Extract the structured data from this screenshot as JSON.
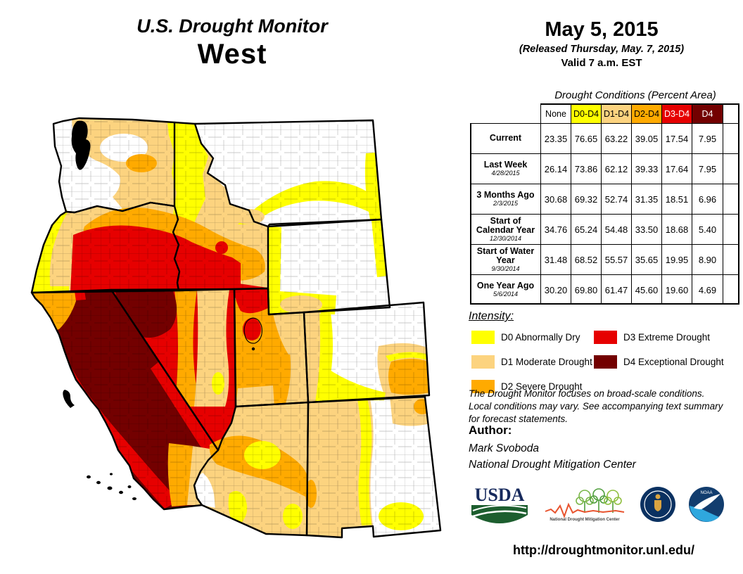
{
  "header": {
    "title": "U.S. Drought Monitor",
    "region": "West",
    "date": "May 5, 2015",
    "released": "(Released Thursday, May. 7, 2015)",
    "valid": "Valid 7 a.m. EST"
  },
  "table": {
    "title": "Drought Conditions (Percent Area)",
    "columns": [
      "None",
      "D0-D4",
      "D1-D4",
      "D2-D4",
      "D3-D4",
      "D4"
    ],
    "rows": [
      {
        "label": "Current",
        "sub": "",
        "values": [
          "23.35",
          "76.65",
          "63.22",
          "39.05",
          "17.54",
          "7.95"
        ]
      },
      {
        "label": "Last Week",
        "sub": "4/28/2015",
        "values": [
          "26.14",
          "73.86",
          "62.12",
          "39.33",
          "17.64",
          "7.95"
        ]
      },
      {
        "label": "3 Months Ago",
        "sub": "2/3/2015",
        "values": [
          "30.68",
          "69.32",
          "52.74",
          "31.35",
          "18.51",
          "6.96"
        ]
      },
      {
        "label": "Start of Calendar Year",
        "sub": "12/30/2014",
        "values": [
          "34.76",
          "65.24",
          "54.48",
          "33.50",
          "18.68",
          "5.40"
        ]
      },
      {
        "label": "Start of Water Year",
        "sub": "9/30/2014",
        "values": [
          "31.48",
          "68.52",
          "55.57",
          "35.65",
          "19.95",
          "8.90"
        ]
      },
      {
        "label": "One Year Ago",
        "sub": "5/6/2014",
        "values": [
          "30.20",
          "69.80",
          "61.47",
          "45.60",
          "19.60",
          "4.69"
        ]
      }
    ]
  },
  "legend": {
    "title": "Intensity:",
    "items": [
      {
        "code": "d0",
        "label": "D0 Abnormally Dry"
      },
      {
        "code": "d1",
        "label": "D1 Moderate Drought"
      },
      {
        "code": "d2",
        "label": "D2 Severe Drought"
      },
      {
        "code": "d3",
        "label": "D3 Extreme Drought"
      },
      {
        "code": "d4",
        "label": "D4 Exceptional Drought"
      }
    ]
  },
  "notes": {
    "line1": "The Drought Monitor focuses on broad-scale conditions.",
    "line2": "Local conditions may vary. See accompanying text summary",
    "line3": "for forecast statements.",
    "author_heading": "Author:",
    "author_name": "Mark Svoboda",
    "author_org": "National Drought Mitigation Center"
  },
  "footer": {
    "url": "http://droughtmonitor.unl.edu/",
    "usda_label": "USDA",
    "ndmc_label": "National Drought Mitigation Center",
    "noaa_label": "NOAA"
  },
  "colors": {
    "none": "#FFFFFF",
    "d0": "#FFFF00",
    "d1": "#FCD37F",
    "d2": "#FFAA00",
    "d3": "#E60000",
    "d4": "#730000"
  },
  "map": {
    "region": "West",
    "states": [
      "Washington",
      "Oregon",
      "California",
      "Nevada",
      "Idaho",
      "Montana",
      "Wyoming",
      "Utah",
      "Colorado",
      "Arizona",
      "New Mexico"
    ]
  }
}
